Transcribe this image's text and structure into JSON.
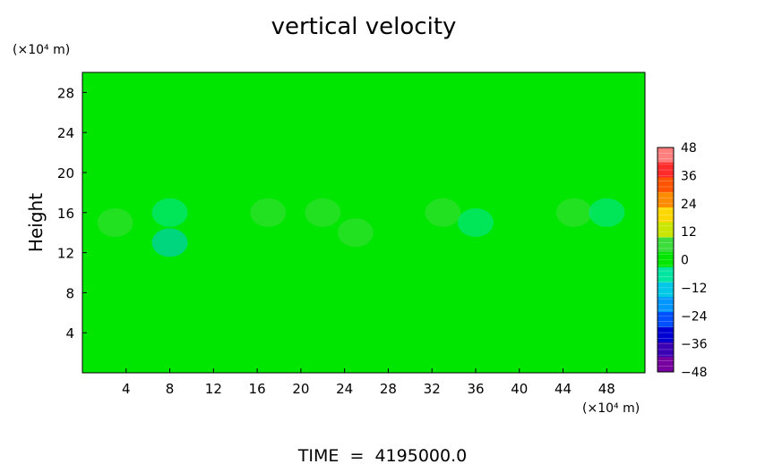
{
  "chart_data": {
    "type": "heatmap",
    "title": "vertical velocity",
    "xlabel": "",
    "ylabel": "Height",
    "x_unit": "(×10⁴ m)",
    "y_unit": "(×10⁴ m)",
    "xlim": [
      0,
      51.5
    ],
    "ylim": [
      0,
      30
    ],
    "x_ticks": [
      4,
      8,
      12,
      16,
      20,
      24,
      28,
      32,
      36,
      40,
      44,
      48
    ],
    "y_ticks": [
      4,
      8,
      12,
      16,
      20,
      24,
      28
    ],
    "colorbar": {
      "ticks": [
        48,
        36,
        24,
        12,
        0,
        -12,
        -24,
        -36,
        -48
      ],
      "range": [
        -48,
        48
      ],
      "colors": [
        "#ff7f7f",
        "#ff2a2a",
        "#ff5500",
        "#ff8c00",
        "#ffd700",
        "#c8e600",
        "#3cdc3c",
        "#00e600",
        "#00e6a0",
        "#00c8e6",
        "#0096ff",
        "#0050ff",
        "#0000d2",
        "#3c00b4",
        "#7800a0"
      ]
    },
    "background_value": 0,
    "features": [
      {
        "x": 3,
        "y": 15,
        "value": 6
      },
      {
        "x": 8,
        "y": 16,
        "value": -10
      },
      {
        "x": 8,
        "y": 13,
        "value": -12
      },
      {
        "x": 17,
        "y": 16,
        "value": 8
      },
      {
        "x": 22,
        "y": 16,
        "value": 8
      },
      {
        "x": 25,
        "y": 14,
        "value": 5
      },
      {
        "x": 33,
        "y": 16,
        "value": 4
      },
      {
        "x": 36,
        "y": 15,
        "value": -6
      },
      {
        "x": 45,
        "y": 16,
        "value": 8
      },
      {
        "x": 48,
        "y": 16,
        "value": -8
      }
    ],
    "footer": "TIME  =  4195000.0"
  }
}
